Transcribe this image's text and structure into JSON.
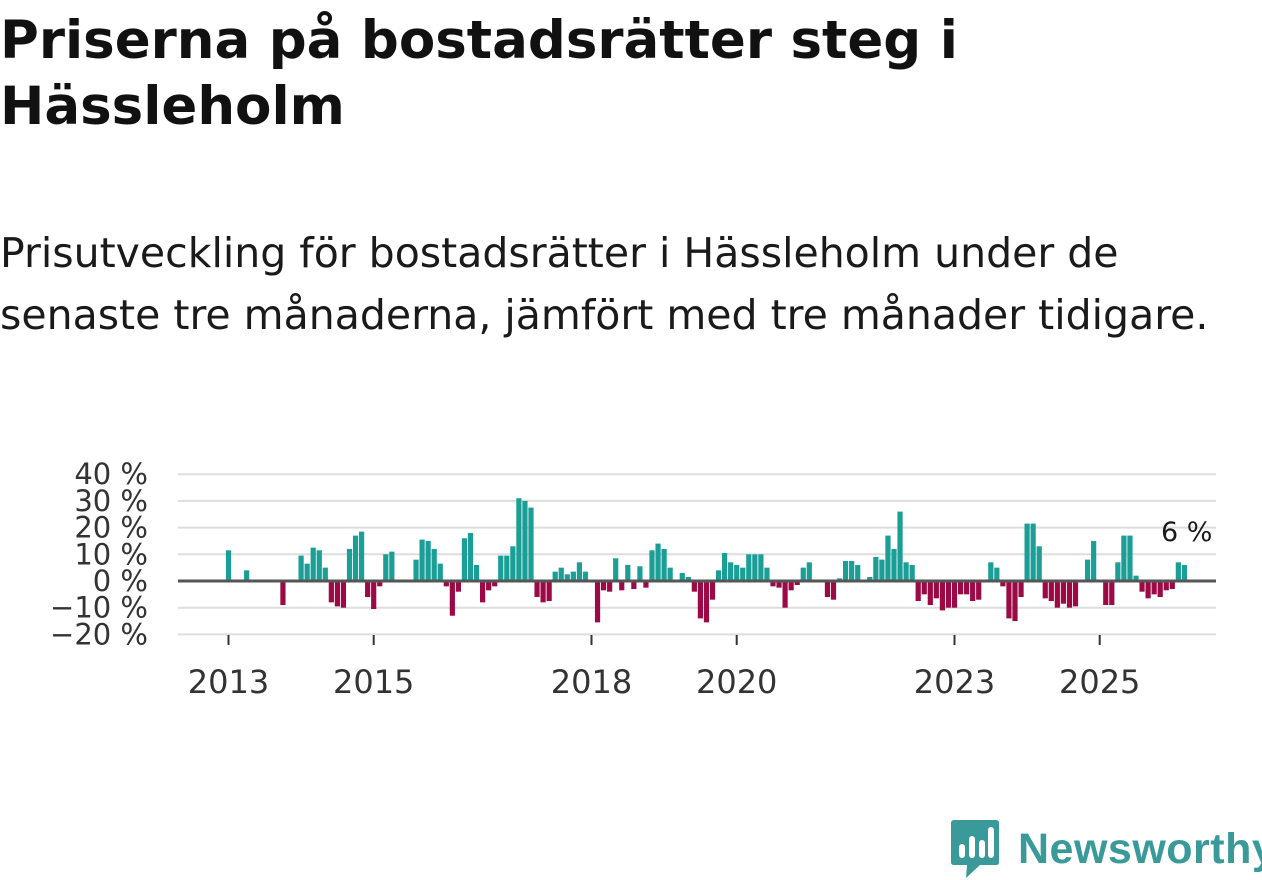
{
  "header": {
    "title": "Priserna på bostadsrätter steg i Hässleholm",
    "subtitle": "Prisutveckling för bostadsrätter i Hässleholm under de senaste tre månaderna, jämfört med tre månader tidigare."
  },
  "brand": {
    "name": "Newsworthy"
  },
  "colors": {
    "positive": "#1a9e96",
    "negative": "#9b0a45",
    "grid": "#dddddd",
    "zero_line": "#555555",
    "brand": "#3a9a9a"
  },
  "chart_data": {
    "type": "bar",
    "title": "",
    "xlabel": "",
    "ylabel": "",
    "ylim": [
      -20,
      40
    ],
    "yticks": [
      "40 %",
      "30 %",
      "20 %",
      "10 %",
      "0 %",
      "−10 %",
      "−20 %"
    ],
    "ytick_values": [
      40,
      30,
      20,
      10,
      0,
      -10,
      -20
    ],
    "xticks": [
      "2013",
      "2015",
      "2018",
      "2020",
      "2023",
      "2025"
    ],
    "start": "2013-01",
    "last_label": "6 %",
    "values": [
      11.5,
      0,
      0,
      4,
      0,
      0,
      0,
      0,
      0,
      -9,
      0,
      0,
      9.5,
      6.5,
      12.5,
      11.5,
      5,
      -8,
      -9.5,
      -10,
      12,
      17,
      18.5,
      -6,
      -10.5,
      -2,
      10,
      11,
      0,
      0,
      0,
      8,
      15.5,
      15,
      12,
      6.5,
      -2,
      -13,
      -4,
      16,
      18,
      6,
      -8,
      -3.5,
      -2,
      9.5,
      9.5,
      13,
      31,
      30,
      27.5,
      -6,
      -8,
      -7.5,
      3.5,
      5,
      2.5,
      3.5,
      7,
      3.5,
      0,
      -15.5,
      -3.5,
      -4,
      8.5,
      -3.5,
      6,
      -3,
      5.5,
      -2.5,
      11.5,
      14,
      12,
      5,
      0,
      3,
      1.5,
      -4,
      -14,
      -15.5,
      -7,
      4,
      10.5,
      7,
      6,
      5,
      10,
      10,
      10,
      5,
      -2,
      -2.5,
      -10,
      -3.5,
      -1.5,
      5,
      7,
      0,
      0,
      -6,
      -7,
      1,
      7.5,
      7.5,
      6,
      0,
      1.5,
      9,
      8,
      17,
      12,
      26,
      7,
      6,
      -7.5,
      -5,
      -9,
      -6.5,
      -11,
      -10,
      -10,
      -5,
      -5,
      -7.5,
      -7,
      0,
      7,
      5,
      -2,
      -14,
      -15,
      -6,
      21.5,
      21.5,
      13,
      -6.5,
      -7.5,
      -10,
      -8.5,
      -10,
      -9.5,
      0,
      8,
      15,
      0,
      -9,
      -9,
      7,
      17,
      17,
      2,
      -4,
      -6.5,
      -5,
      -6,
      -3.5,
      -3,
      7,
      6
    ]
  }
}
